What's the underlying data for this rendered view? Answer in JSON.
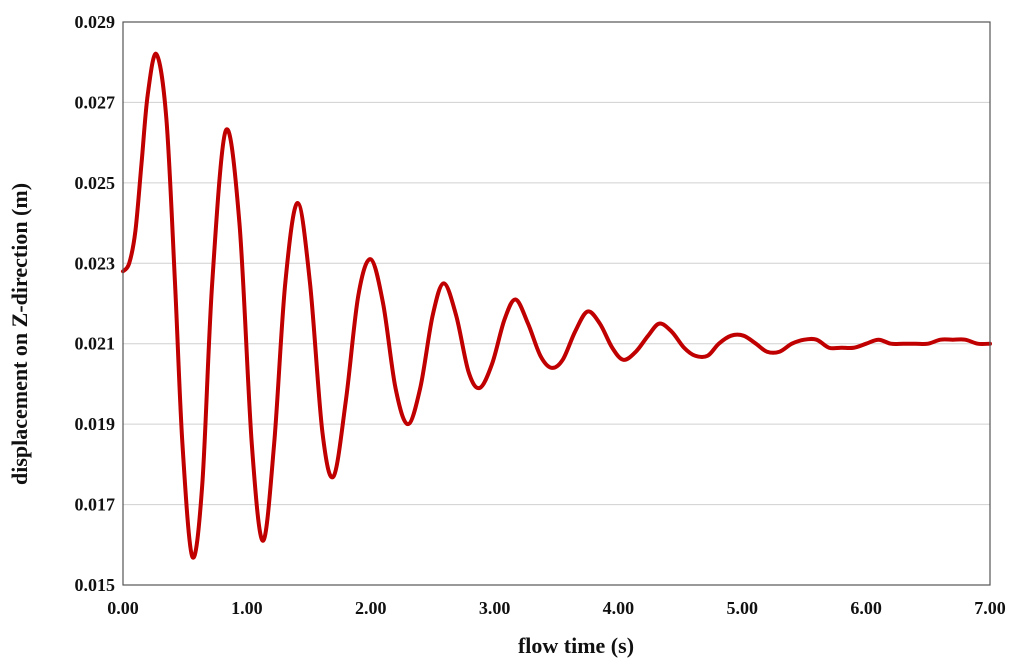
{
  "chart_data": {
    "type": "line",
    "title": "",
    "xlabel": "flow time (s)",
    "ylabel": "displacement on Z-direction (m)",
    "xlim": [
      0,
      7
    ],
    "ylim": [
      0.015,
      0.029
    ],
    "x_ticks": [
      "0.00",
      "1.00",
      "2.00",
      "3.00",
      "4.00",
      "5.00",
      "6.00",
      "7.00"
    ],
    "y_ticks": [
      "0.015",
      "0.017",
      "0.019",
      "0.021",
      "0.023",
      "0.025",
      "0.027",
      "0.029"
    ],
    "grid": {
      "horizontal": true,
      "vertical": false
    },
    "legend": "none",
    "series": [
      {
        "color": "#c00000",
        "x": [
          0.0,
          0.05,
          0.1,
          0.15,
          0.2,
          0.27,
          0.35,
          0.42,
          0.48,
          0.56,
          0.64,
          0.72,
          0.83,
          0.94,
          1.04,
          1.13,
          1.22,
          1.31,
          1.41,
          1.51,
          1.61,
          1.7,
          1.8,
          1.9,
          2.0,
          2.1,
          2.2,
          2.3,
          2.4,
          2.5,
          2.59,
          2.69,
          2.79,
          2.88,
          2.98,
          3.08,
          3.17,
          3.27,
          3.37,
          3.46,
          3.55,
          3.65,
          3.75,
          3.85,
          3.95,
          4.04,
          4.14,
          4.24,
          4.33,
          4.43,
          4.53,
          4.62,
          4.72,
          4.81,
          4.91,
          5.01,
          5.11,
          5.2,
          5.3,
          5.4,
          5.5,
          5.6,
          5.7,
          5.8,
          5.9,
          6.0,
          6.1,
          6.2,
          6.3,
          6.4,
          6.5,
          6.6,
          6.7,
          6.8,
          6.9,
          7.0
        ],
        "y": [
          0.0228,
          0.023,
          0.0238,
          0.0255,
          0.0272,
          0.0282,
          0.0266,
          0.0225,
          0.0185,
          0.0157,
          0.0175,
          0.0225,
          0.0263,
          0.024,
          0.0185,
          0.0161,
          0.0185,
          0.0225,
          0.0245,
          0.0225,
          0.0188,
          0.0177,
          0.0196,
          0.0222,
          0.0231,
          0.022,
          0.0199,
          0.019,
          0.0199,
          0.0217,
          0.0225,
          0.0217,
          0.0203,
          0.0199,
          0.0205,
          0.0216,
          0.0221,
          0.0215,
          0.0207,
          0.0204,
          0.0206,
          0.0213,
          0.0218,
          0.0215,
          0.0209,
          0.0206,
          0.0208,
          0.0212,
          0.0215,
          0.0213,
          0.0209,
          0.0207,
          0.0207,
          0.021,
          0.0212,
          0.0212,
          0.021,
          0.0208,
          0.0208,
          0.021,
          0.0211,
          0.0211,
          0.0209,
          0.0209,
          0.0209,
          0.021,
          0.0211,
          0.021,
          0.021,
          0.021,
          0.021,
          0.0211,
          0.0211,
          0.0211,
          0.021,
          0.021
        ]
      }
    ]
  }
}
